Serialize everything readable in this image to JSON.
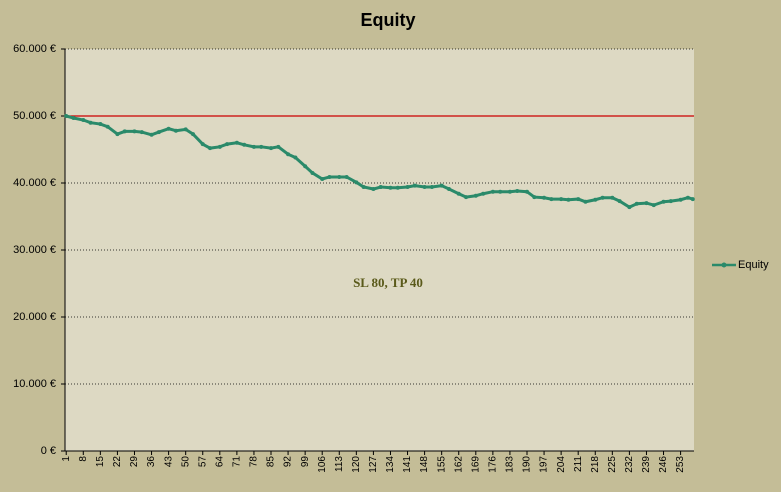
{
  "chart_data": {
    "type": "line",
    "title": "Equity",
    "annotation": "SL 80, TP 40",
    "x": [
      1,
      4,
      8,
      11,
      15,
      18,
      22,
      25,
      29,
      32,
      36,
      39,
      43,
      46,
      50,
      53,
      57,
      60,
      64,
      67,
      71,
      74,
      78,
      81,
      85,
      88,
      92,
      95,
      99,
      102,
      106,
      109,
      113,
      116,
      120,
      123,
      127,
      130,
      134,
      137,
      141,
      144,
      148,
      151,
      155,
      158,
      162,
      165,
      169,
      172,
      176,
      179,
      183,
      186,
      190,
      193,
      197,
      200,
      204,
      207,
      211,
      214,
      218,
      221,
      225,
      228,
      232,
      235,
      239,
      242,
      246,
      249,
      253,
      256,
      258
    ],
    "series": [
      {
        "name": "Equity",
        "color": "#2a8a6a",
        "values": [
          50000,
          49700,
          49400,
          49000,
          48800,
          48400,
          47300,
          47700,
          47700,
          47600,
          47200,
          47600,
          48100,
          47800,
          48000,
          47300,
          45800,
          45200,
          45400,
          45800,
          46000,
          45700,
          45400,
          45400,
          45200,
          45400,
          44300,
          43800,
          42500,
          41500,
          40600,
          40900,
          40900,
          40900,
          40100,
          39400,
          39100,
          39400,
          39300,
          39300,
          39400,
          39600,
          39400,
          39400,
          39600,
          39100,
          38400,
          37900,
          38100,
          38400,
          38700,
          38700,
          38700,
          38800,
          38700,
          37900,
          37800,
          37600,
          37600,
          37500,
          37600,
          37200,
          37500,
          37800,
          37800,
          37300,
          36400,
          36900,
          37000,
          36700,
          37200,
          37300,
          37500,
          37800,
          37600
        ]
      }
    ],
    "reference_line": {
      "value": 50000,
      "color": "#cc0000"
    },
    "xlim": [
      0.5,
      258.5
    ],
    "xticks": [
      1,
      8,
      15,
      22,
      29,
      36,
      43,
      50,
      57,
      64,
      71,
      78,
      85,
      92,
      99,
      106,
      113,
      120,
      127,
      134,
      141,
      148,
      155,
      162,
      169,
      176,
      183,
      190,
      197,
      204,
      211,
      218,
      225,
      232,
      239,
      246,
      253
    ],
    "ylim": [
      0,
      60000
    ],
    "yticks": [
      {
        "value": 0,
        "label": "0 €"
      },
      {
        "value": 10000,
        "label": "10.000 €"
      },
      {
        "value": 20000,
        "label": "20.000 €"
      },
      {
        "value": 30000,
        "label": "30.000 €"
      },
      {
        "value": 40000,
        "label": "40.000 €"
      },
      {
        "value": 50000,
        "label": "50.000 €"
      },
      {
        "value": 60000,
        "label": "60.000 €"
      }
    ],
    "grid": true,
    "legend": "right"
  }
}
